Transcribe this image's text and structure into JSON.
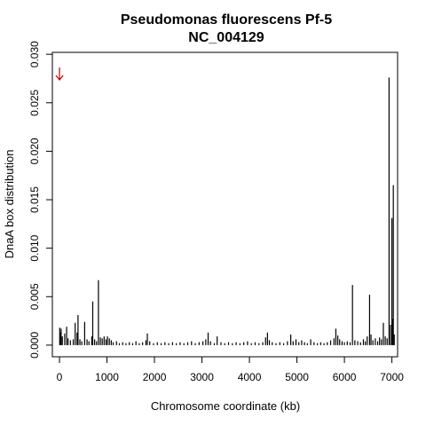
{
  "chart_data": {
    "type": "bar",
    "title": "Pseudomonas fluorescens Pf-5",
    "subtitle": "NC_004129",
    "xlabel": "Chromosome coordinate (kb)",
    "ylabel": "DnaA box distribution",
    "xlim": [
      -150,
      7120
    ],
    "ylim": [
      -0.0012,
      0.0302
    ],
    "xticks": [
      0,
      1000,
      2000,
      3000,
      4000,
      5000,
      6000,
      7000
    ],
    "xtick_labels": [
      "0",
      "1000",
      "2000",
      "3000",
      "4000",
      "5000",
      "6000",
      "7000"
    ],
    "yticks": [
      0.0,
      0.005,
      0.01,
      0.015,
      0.02,
      0.025,
      0.03
    ],
    "ytick_labels": [
      "0.000",
      "0.005",
      "0.010",
      "0.015",
      "0.020",
      "0.025",
      "0.030"
    ],
    "grid": false,
    "bar_color": "#000000",
    "marker": {
      "type": "arrow-down",
      "x": 0,
      "y": 0.028,
      "color": "#cc0000"
    },
    "points": [
      {
        "x": 5,
        "y": 0.0018
      },
      {
        "x": 20,
        "y": 0.0013
      },
      {
        "x": 35,
        "y": 0.0017
      },
      {
        "x": 60,
        "y": 0.0009
      },
      {
        "x": 110,
        "y": 0.0012
      },
      {
        "x": 150,
        "y": 0.0019
      },
      {
        "x": 180,
        "y": 0.0007
      },
      {
        "x": 230,
        "y": 0.0005
      },
      {
        "x": 290,
        "y": 0.0006
      },
      {
        "x": 330,
        "y": 0.0023
      },
      {
        "x": 370,
        "y": 0.0013
      },
      {
        "x": 390,
        "y": 0.0031
      },
      {
        "x": 430,
        "y": 0.0006
      },
      {
        "x": 470,
        "y": 0.0004
      },
      {
        "x": 530,
        "y": 0.0024
      },
      {
        "x": 580,
        "y": 0.0006
      },
      {
        "x": 620,
        "y": 0.0004
      },
      {
        "x": 680,
        "y": 0.0009
      },
      {
        "x": 700,
        "y": 0.0045
      },
      {
        "x": 740,
        "y": 0.0006
      },
      {
        "x": 780,
        "y": 0.0004
      },
      {
        "x": 820,
        "y": 0.0067
      },
      {
        "x": 860,
        "y": 0.0008
      },
      {
        "x": 900,
        "y": 0.0007
      },
      {
        "x": 940,
        "y": 0.0009
      },
      {
        "x": 980,
        "y": 0.0006
      },
      {
        "x": 1010,
        "y": 0.0009
      },
      {
        "x": 1050,
        "y": 0.0007
      },
      {
        "x": 1090,
        "y": 0.0005
      },
      {
        "x": 1130,
        "y": 0.0003
      },
      {
        "x": 1200,
        "y": 0.0004
      },
      {
        "x": 1260,
        "y": 0.0002
      },
      {
        "x": 1330,
        "y": 0.0003
      },
      {
        "x": 1400,
        "y": 0.0002
      },
      {
        "x": 1470,
        "y": 0.0003
      },
      {
        "x": 1540,
        "y": 0.0002
      },
      {
        "x": 1610,
        "y": 0.0004
      },
      {
        "x": 1680,
        "y": 0.0002
      },
      {
        "x": 1750,
        "y": 0.0003
      },
      {
        "x": 1820,
        "y": 0.0005
      },
      {
        "x": 1850,
        "y": 0.0012
      },
      {
        "x": 1900,
        "y": 0.0004
      },
      {
        "x": 1980,
        "y": 0.0002
      },
      {
        "x": 2060,
        "y": 0.0003
      },
      {
        "x": 2140,
        "y": 0.0002
      },
      {
        "x": 2220,
        "y": 0.0003
      },
      {
        "x": 2300,
        "y": 0.0002
      },
      {
        "x": 2380,
        "y": 0.0003
      },
      {
        "x": 2460,
        "y": 0.0002
      },
      {
        "x": 2540,
        "y": 0.0003
      },
      {
        "x": 2620,
        "y": 0.0002
      },
      {
        "x": 2700,
        "y": 0.0003
      },
      {
        "x": 2780,
        "y": 0.0004
      },
      {
        "x": 2860,
        "y": 0.0002
      },
      {
        "x": 2940,
        "y": 0.0003
      },
      {
        "x": 3020,
        "y": 0.0004
      },
      {
        "x": 3080,
        "y": 0.0006
      },
      {
        "x": 3130,
        "y": 0.0013
      },
      {
        "x": 3180,
        "y": 0.0004
      },
      {
        "x": 3260,
        "y": 0.0002
      },
      {
        "x": 3320,
        "y": 0.0009
      },
      {
        "x": 3400,
        "y": 0.0003
      },
      {
        "x": 3480,
        "y": 0.0002
      },
      {
        "x": 3560,
        "y": 0.0003
      },
      {
        "x": 3640,
        "y": 0.0002
      },
      {
        "x": 3720,
        "y": 0.0003
      },
      {
        "x": 3800,
        "y": 0.0002
      },
      {
        "x": 3880,
        "y": 0.0003
      },
      {
        "x": 3960,
        "y": 0.0004
      },
      {
        "x": 4040,
        "y": 0.0002
      },
      {
        "x": 4120,
        "y": 0.0003
      },
      {
        "x": 4200,
        "y": 0.0002
      },
      {
        "x": 4280,
        "y": 0.0003
      },
      {
        "x": 4340,
        "y": 0.0008
      },
      {
        "x": 4380,
        "y": 0.0013
      },
      {
        "x": 4420,
        "y": 0.0005
      },
      {
        "x": 4480,
        "y": 0.0003
      },
      {
        "x": 4560,
        "y": 0.0002
      },
      {
        "x": 4640,
        "y": 0.0003
      },
      {
        "x": 4720,
        "y": 0.0002
      },
      {
        "x": 4800,
        "y": 0.0004
      },
      {
        "x": 4870,
        "y": 0.0011
      },
      {
        "x": 4920,
        "y": 0.0004
      },
      {
        "x": 4980,
        "y": 0.0006
      },
      {
        "x": 5040,
        "y": 0.0003
      },
      {
        "x": 5100,
        "y": 0.0005
      },
      {
        "x": 5160,
        "y": 0.0003
      },
      {
        "x": 5220,
        "y": 0.0002
      },
      {
        "x": 5290,
        "y": 0.0006
      },
      {
        "x": 5360,
        "y": 0.0003
      },
      {
        "x": 5430,
        "y": 0.0002
      },
      {
        "x": 5500,
        "y": 0.0003
      },
      {
        "x": 5570,
        "y": 0.0002
      },
      {
        "x": 5640,
        "y": 0.0003
      },
      {
        "x": 5710,
        "y": 0.0005
      },
      {
        "x": 5780,
        "y": 0.0007
      },
      {
        "x": 5820,
        "y": 0.0017
      },
      {
        "x": 5860,
        "y": 0.001
      },
      {
        "x": 5900,
        "y": 0.0006
      },
      {
        "x": 5950,
        "y": 0.0004
      },
      {
        "x": 6000,
        "y": 0.0003
      },
      {
        "x": 6060,
        "y": 0.0004
      },
      {
        "x": 6120,
        "y": 0.0003
      },
      {
        "x": 6170,
        "y": 0.0062
      },
      {
        "x": 6220,
        "y": 0.0005
      },
      {
        "x": 6280,
        "y": 0.0004
      },
      {
        "x": 6340,
        "y": 0.0003
      },
      {
        "x": 6400,
        "y": 0.0006
      },
      {
        "x": 6440,
        "y": 0.0004
      },
      {
        "x": 6480,
        "y": 0.0009
      },
      {
        "x": 6530,
        "y": 0.0052
      },
      {
        "x": 6560,
        "y": 0.0011
      },
      {
        "x": 6600,
        "y": 0.0005
      },
      {
        "x": 6650,
        "y": 0.0007
      },
      {
        "x": 6700,
        "y": 0.0004
      },
      {
        "x": 6740,
        "y": 0.0008
      },
      {
        "x": 6780,
        "y": 0.0006
      },
      {
        "x": 6820,
        "y": 0.0023
      },
      {
        "x": 6860,
        "y": 0.0009
      },
      {
        "x": 6900,
        "y": 0.0007
      },
      {
        "x": 6940,
        "y": 0.0276
      },
      {
        "x": 6970,
        "y": 0.0021
      },
      {
        "x": 7000,
        "y": 0.0131
      },
      {
        "x": 7010,
        "y": 0.0027
      },
      {
        "x": 7030,
        "y": 0.0165
      },
      {
        "x": 7050,
        "y": 0.0011
      }
    ]
  }
}
